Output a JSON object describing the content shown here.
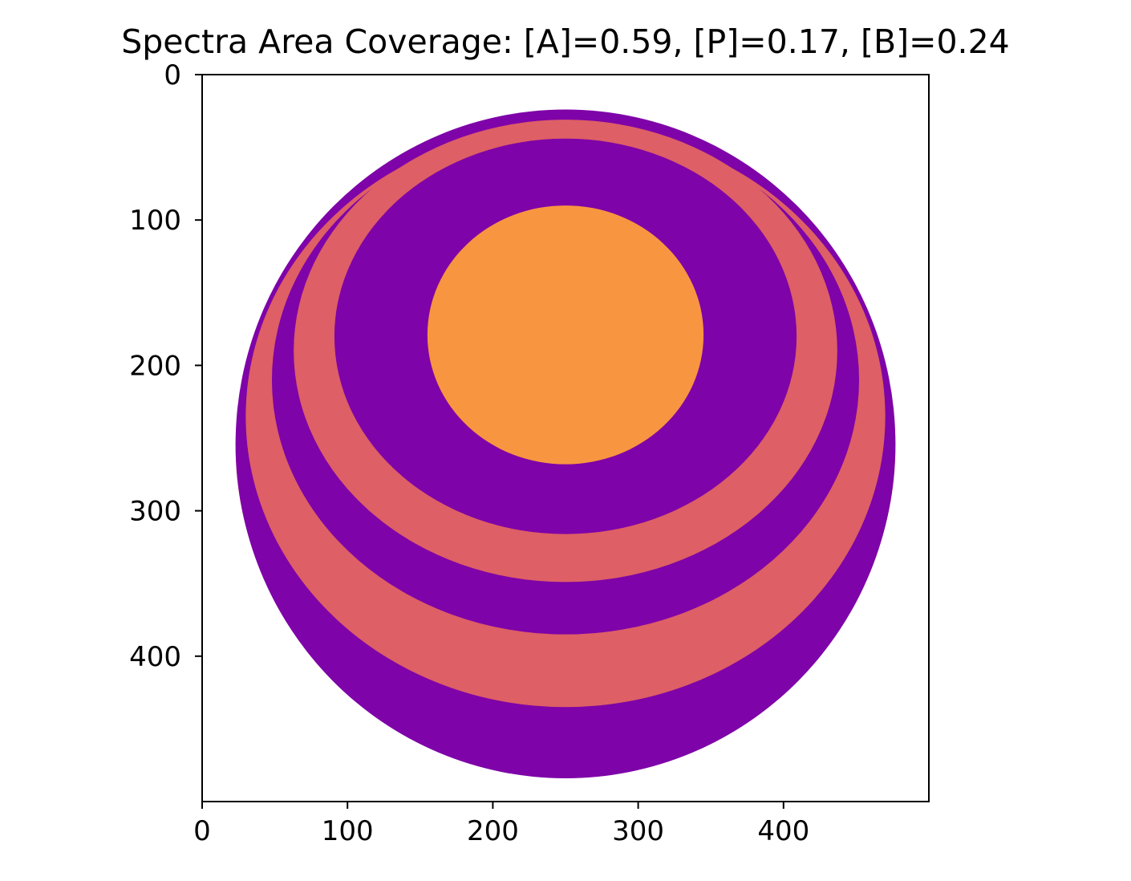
{
  "chart_data": {
    "type": "heatmap",
    "title": "Spectra Area Coverage: [A]=0.59, [P]=0.17, [B]=0.24",
    "xlabel": "",
    "ylabel": "",
    "xlim": [
      0,
      500
    ],
    "ylim": [
      500,
      0
    ],
    "x_ticks": [
      "0",
      "100",
      "200",
      "300",
      "400"
    ],
    "y_ticks": [
      "0",
      "100",
      "200",
      "300",
      "400"
    ],
    "grid": false,
    "colors": {
      "A": "#7e03a8",
      "P": "#f89540",
      "B": "#de5f65",
      "background": "#ffffff"
    },
    "regions": [
      {
        "class": "B",
        "shape": "ellipse",
        "cx": 250,
        "cy": 256,
        "rx": 227,
        "ry": 221
      },
      {
        "class": "A",
        "shape": "ellipse",
        "cx": 250,
        "cy": 254,
        "rx": 227,
        "ry": 230
      },
      {
        "class": "B",
        "shape": "ellipse",
        "cx": 250,
        "cy": 235,
        "rx": 220,
        "ry": 200
      },
      {
        "class": "A",
        "shape": "ellipse",
        "cx": 250,
        "cy": 210,
        "rx": 202,
        "ry": 175
      },
      {
        "class": "B",
        "shape": "ellipse",
        "cx": 250,
        "cy": 190,
        "rx": 187,
        "ry": 159
      },
      {
        "class": "A",
        "shape": "ellipse",
        "cx": 250,
        "cy": 180,
        "rx": 159,
        "ry": 136
      },
      {
        "class": "P",
        "shape": "ellipse",
        "cx": 250,
        "cy": 179,
        "rx": 95,
        "ry": 89
      }
    ]
  }
}
